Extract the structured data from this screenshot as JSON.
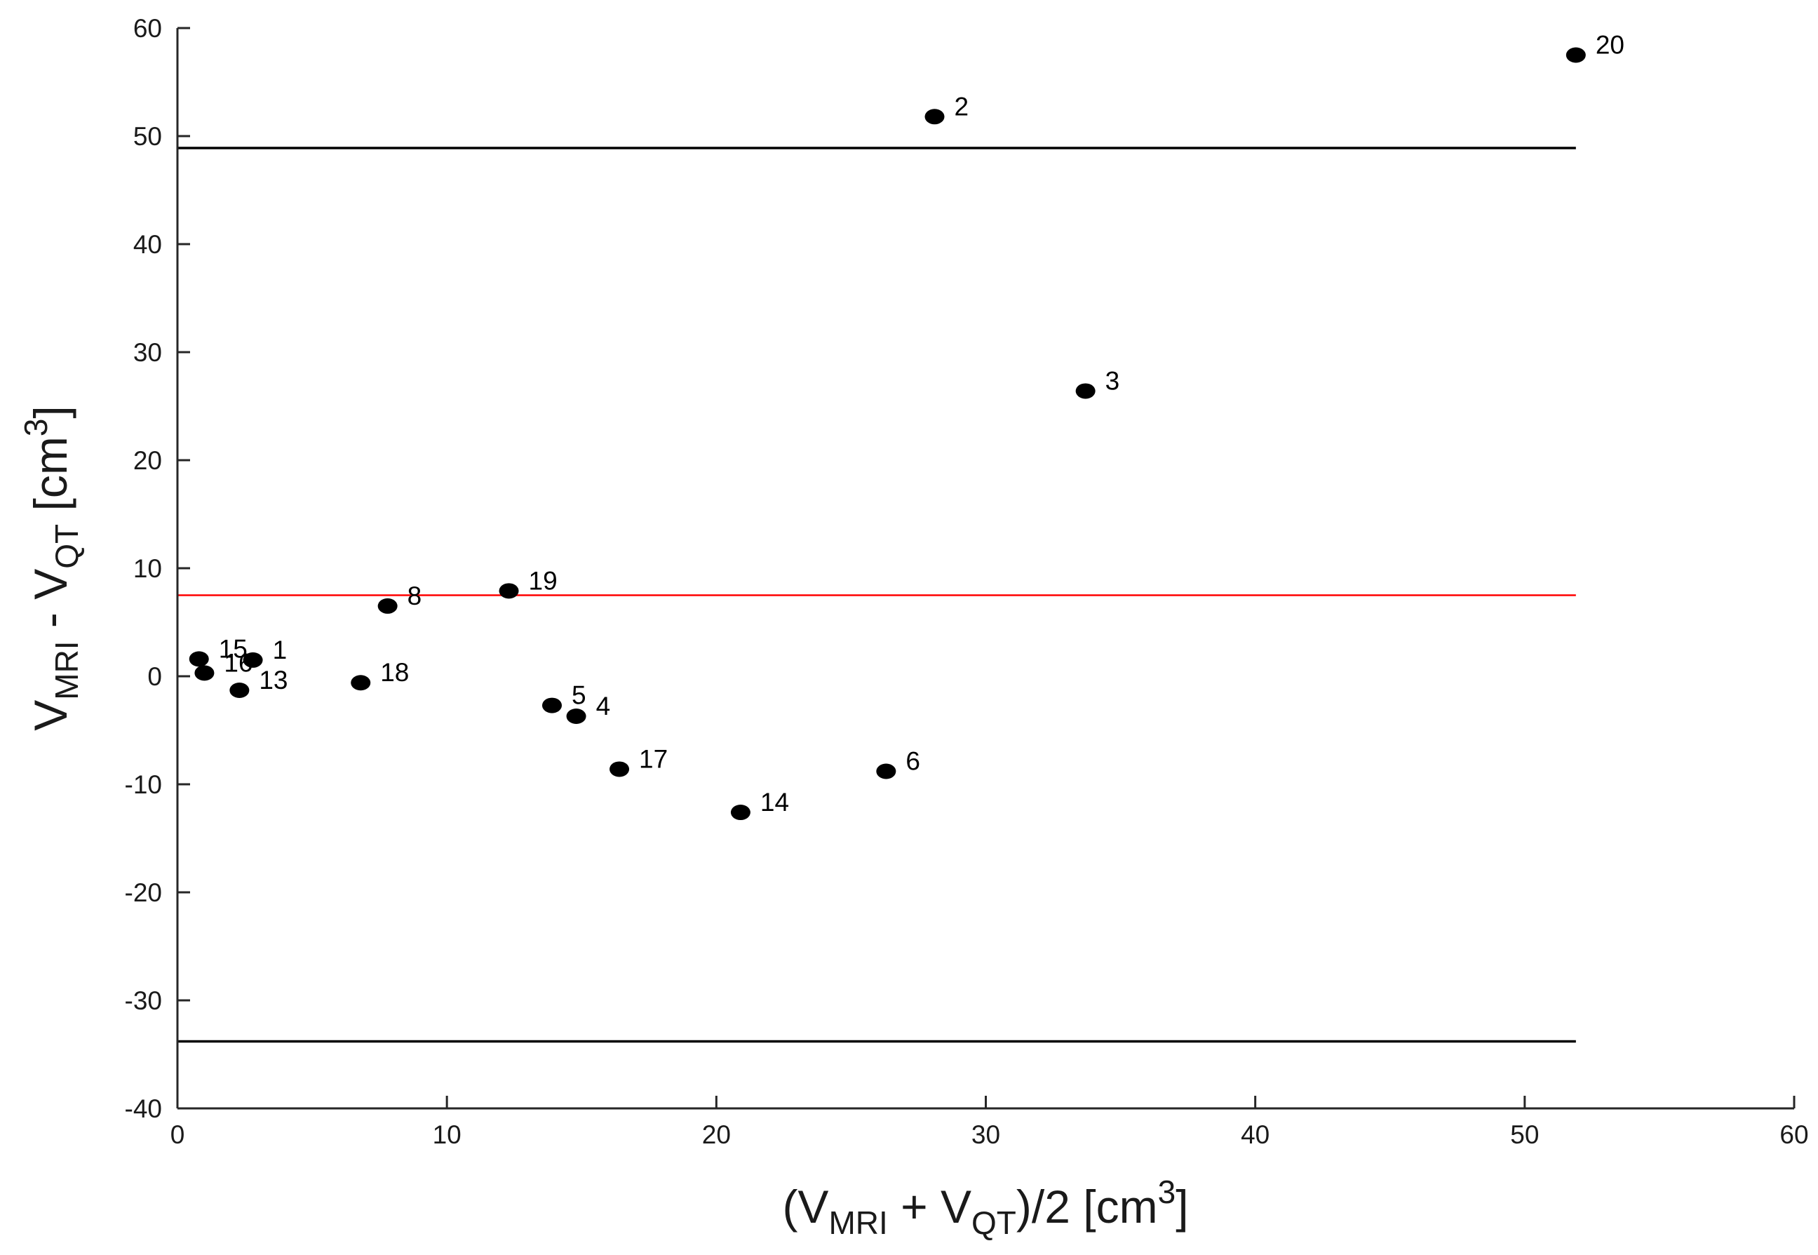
{
  "chart_data": {
    "type": "scatter",
    "xlabel": {
      "pre": "(V",
      "sub1": "MRI",
      "mid": " + V",
      "sub2": "QT",
      "post": ")/2 [cm",
      "sup": "3",
      "end": "]"
    },
    "ylabel": {
      "pre": "V",
      "sub1": "MRI",
      "mid": " - V",
      "sub2": "QT",
      "post": " [cm",
      "sup": "3",
      "end": "]"
    },
    "xlim": [
      0,
      60
    ],
    "ylim": [
      -40,
      60
    ],
    "xticks": [
      0,
      10,
      20,
      30,
      40,
      50,
      60
    ],
    "yticks": [
      -40,
      -30,
      -20,
      -10,
      0,
      10,
      20,
      30,
      40,
      50,
      60
    ],
    "grid": false,
    "points": [
      {
        "label": "1",
        "x": 2.8,
        "y": 1.5
      },
      {
        "label": "2",
        "x": 28.1,
        "y": 51.8
      },
      {
        "label": "3",
        "x": 33.7,
        "y": 26.4
      },
      {
        "label": "4",
        "x": 14.8,
        "y": -3.7
      },
      {
        "label": "5",
        "x": 13.9,
        "y": -2.7
      },
      {
        "label": "6",
        "x": 26.3,
        "y": -8.8
      },
      {
        "label": "8",
        "x": 7.8,
        "y": 6.5
      },
      {
        "label": "13",
        "x": 2.3,
        "y": -1.3
      },
      {
        "label": "14",
        "x": 20.9,
        "y": -12.6
      },
      {
        "label": "15",
        "x": 0.8,
        "y": 1.6
      },
      {
        "label": "16",
        "x": 1.0,
        "y": 0.3
      },
      {
        "label": "17",
        "x": 16.4,
        "y": -8.6
      },
      {
        "label": "18",
        "x": 6.8,
        "y": -0.6
      },
      {
        "label": "19",
        "x": 12.3,
        "y": 7.9
      },
      {
        "label": "20",
        "x": 51.9,
        "y": 57.5
      }
    ],
    "reference_lines": [
      {
        "y": 48.9,
        "x_start": 0,
        "x_end": 51.9,
        "color": "#000000"
      },
      {
        "y": 7.5,
        "x_start": 0,
        "x_end": 51.9,
        "color": "#ff0000"
      },
      {
        "y": -33.8,
        "x_start": 0,
        "x_end": 51.9,
        "color": "#000000"
      }
    ],
    "point_color": "#000000"
  }
}
